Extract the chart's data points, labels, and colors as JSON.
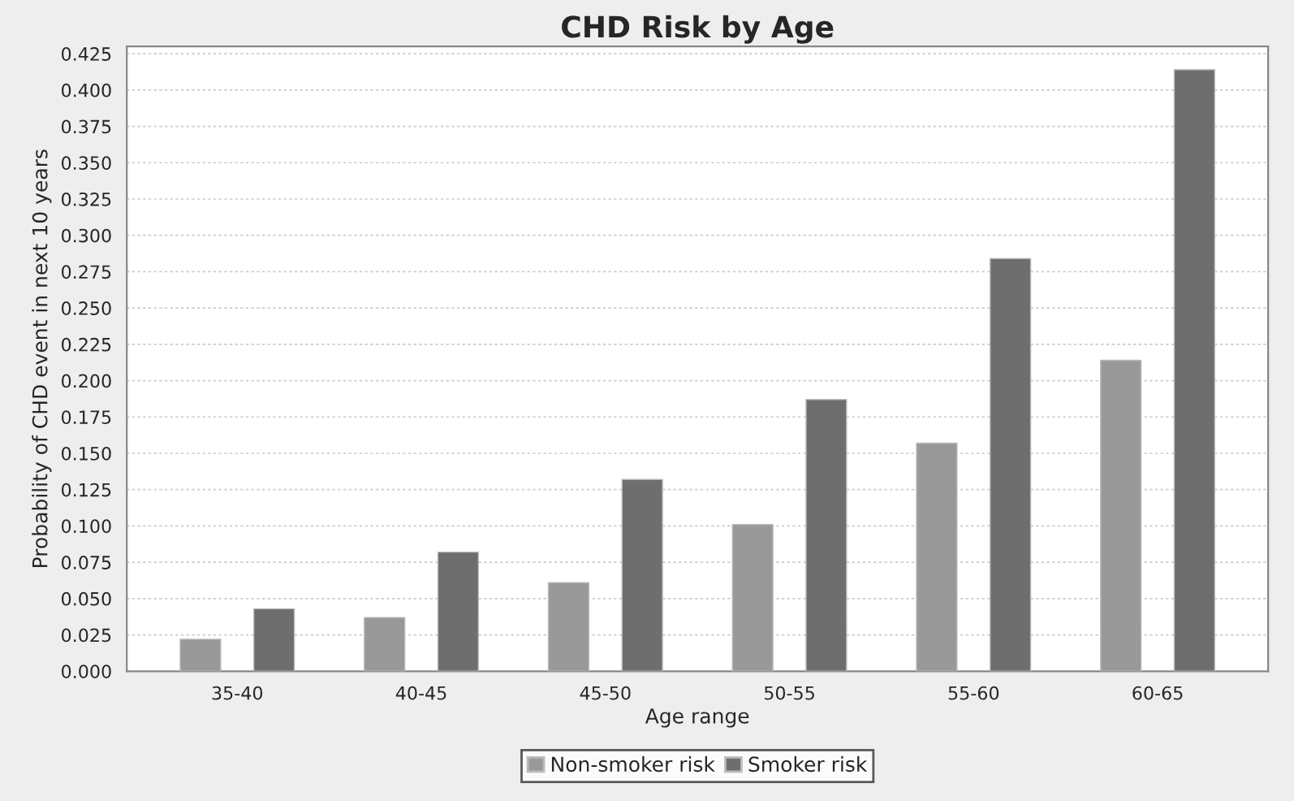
{
  "chart_data": {
    "type": "bar",
    "title": "CHD Risk by Age",
    "xlabel": "Age range",
    "ylabel": "Probability of CHD event in next 10 years",
    "categories": [
      "35-40",
      "40-45",
      "45-50",
      "50-55",
      "55-60",
      "60-65"
    ],
    "series": [
      {
        "name": "Non-smoker risk",
        "color": "#999999",
        "values": [
          0.022,
          0.037,
          0.061,
          0.101,
          0.157,
          0.214
        ]
      },
      {
        "name": "Smoker risk",
        "color": "#6e6e6e",
        "values": [
          0.043,
          0.082,
          0.132,
          0.187,
          0.284,
          0.414
        ]
      }
    ],
    "ylim": [
      0,
      0.43
    ],
    "yticks": [
      {
        "value": 0,
        "label": "0.000"
      },
      {
        "value": 0.025,
        "label": "0.025"
      },
      {
        "value": 0.05,
        "label": "0.050"
      },
      {
        "value": 0.075,
        "label": "0.075"
      },
      {
        "value": 0.1,
        "label": "0.100"
      },
      {
        "value": 0.125,
        "label": "0.125"
      },
      {
        "value": 0.15,
        "label": "0.150"
      },
      {
        "value": 0.175,
        "label": "0.175"
      },
      {
        "value": 0.2,
        "label": "0.200"
      },
      {
        "value": 0.225,
        "label": "0.225"
      },
      {
        "value": 0.25,
        "label": "0.250"
      },
      {
        "value": 0.275,
        "label": "0.275"
      },
      {
        "value": 0.3,
        "label": "0.300"
      },
      {
        "value": 0.325,
        "label": "0.325"
      },
      {
        "value": 0.35,
        "label": "0.350"
      },
      {
        "value": 0.375,
        "label": "0.375"
      },
      {
        "value": 0.4,
        "label": "0.400"
      },
      {
        "value": 0.425,
        "label": "0.425"
      }
    ],
    "grid": "y",
    "legend": "bottom"
  }
}
